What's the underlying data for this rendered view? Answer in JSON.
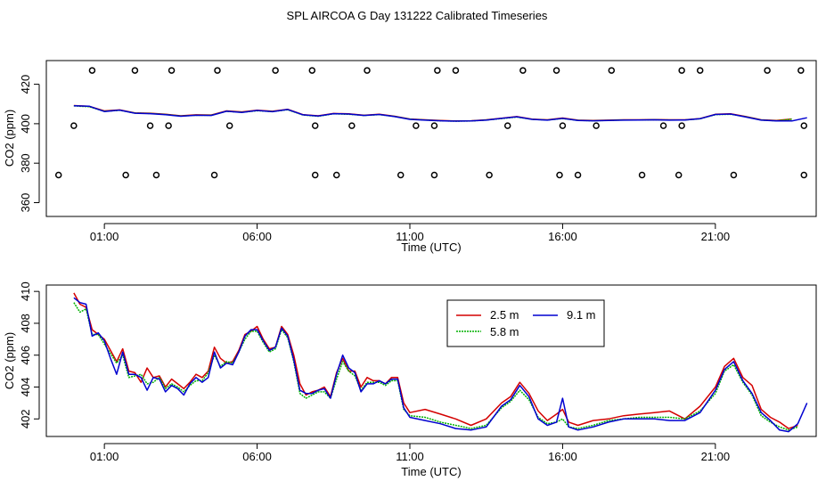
{
  "title": "SPL AIRCOA G  Day 131222  Calibrated Timeseries",
  "chart_data": [
    {
      "type": "scatter",
      "xlabel": "Time (UTC)",
      "ylabel": "CO2 (ppm)",
      "xlim": [
        -0.9,
        24.3
      ],
      "ylim": [
        353,
        432
      ],
      "x_ticks": [
        {
          "v": 1,
          "label": "01:00"
        },
        {
          "v": 6,
          "label": "06:00"
        },
        {
          "v": 11,
          "label": "11:00"
        },
        {
          "v": 16,
          "label": "16:00"
        },
        {
          "v": 21,
          "label": "21:00"
        }
      ],
      "y_ticks": [
        {
          "v": 360,
          "label": "360"
        },
        {
          "v": 380,
          "label": "380"
        },
        {
          "v": 400,
          "label": "400"
        },
        {
          "v": 420,
          "label": "420"
        }
      ],
      "grid": false,
      "series": [
        {
          "color": "#d40000",
          "x": [
            0,
            0.5,
            1.0,
            1.5,
            2.0,
            2.5,
            3.0,
            3.5,
            4.0,
            4.5,
            5.0,
            5.5,
            6.0,
            6.5,
            7.0,
            7.5,
            8.0,
            8.5,
            9.0,
            9.5,
            10.0,
            10.5,
            11.0,
            11.5,
            12.0,
            12.5,
            13.0,
            13.5,
            14.0,
            14.5,
            15.0,
            15.5,
            16.0,
            16.5,
            17.0,
            17.5,
            18.0,
            18.5,
            19.0,
            19.5,
            20.0,
            20.5,
            21.0,
            21.5,
            22.0,
            22.5,
            23.0,
            23.5
          ],
          "y": [
            409.2,
            408.8,
            406.5,
            407.0,
            405.5,
            405.3,
            404.8,
            404.0,
            404.5,
            404.4,
            406.5,
            406.0,
            406.8,
            406.3,
            407.3,
            404.6,
            404.0,
            405.2,
            405.0,
            404.3,
            404.8,
            403.8,
            402.4,
            402.0,
            401.6,
            401.4,
            401.5,
            402.0,
            402.8,
            403.6,
            402.3,
            402.0,
            402.9,
            401.8,
            401.6,
            401.8,
            402.0,
            402.0,
            402.1,
            402.0,
            402.0,
            402.6,
            404.8,
            405.0,
            403.6,
            402.0,
            401.6,
            402.4
          ]
        },
        {
          "color": "#00b000",
          "x": [
            0,
            0.5,
            1.0,
            1.5,
            2.0,
            2.5,
            3.0,
            3.5,
            4.0,
            4.5,
            5.0,
            5.5,
            6.0,
            6.5,
            7.0,
            7.5,
            8.0,
            8.5,
            9.0,
            9.5,
            10.0,
            10.5,
            11.0,
            11.5,
            12.0,
            12.5,
            13.0,
            13.5,
            14.0,
            14.5,
            15.0,
            15.5,
            16.0,
            16.5,
            17.0,
            17.5,
            18.0,
            18.5,
            19.0,
            19.5,
            20.0,
            20.5,
            21.0,
            21.5,
            22.0,
            22.5,
            23.0,
            23.5
          ],
          "y": [
            409.0,
            408.6,
            406.3,
            406.8,
            405.4,
            405.2,
            404.7,
            403.9,
            404.3,
            404.3,
            406.3,
            405.8,
            406.6,
            406.2,
            407.1,
            404.4,
            403.8,
            405.0,
            404.8,
            404.2,
            404.6,
            403.7,
            402.3,
            401.9,
            401.5,
            401.3,
            401.4,
            401.9,
            402.6,
            403.4,
            402.2,
            401.9,
            402.6,
            401.7,
            401.5,
            401.7,
            401.9,
            401.9,
            402.0,
            401.9,
            401.9,
            402.5,
            404.6,
            404.8,
            403.5,
            401.9,
            401.5,
            402.3
          ]
        },
        {
          "color": "#0000d0",
          "x": [
            0,
            0.5,
            1.0,
            1.5,
            2.0,
            2.5,
            3.0,
            3.5,
            4.0,
            4.5,
            5.0,
            5.5,
            6.0,
            6.5,
            7.0,
            7.5,
            8.0,
            8.5,
            9.0,
            9.5,
            10.0,
            10.5,
            11.0,
            11.5,
            12.0,
            12.5,
            13.0,
            13.5,
            14.0,
            14.5,
            15.0,
            15.5,
            16.0,
            16.5,
            17.0,
            17.5,
            18.0,
            18.5,
            19.0,
            19.5,
            20.0,
            20.5,
            21.0,
            21.5,
            22.0,
            22.5,
            23.0,
            23.5,
            24.0
          ],
          "y": [
            409.1,
            408.9,
            406.2,
            406.9,
            405.3,
            405.1,
            404.6,
            403.8,
            404.3,
            404.2,
            406.3,
            405.7,
            406.7,
            406.1,
            407.2,
            404.5,
            403.9,
            405.1,
            404.9,
            404.2,
            404.7,
            403.6,
            402.2,
            401.8,
            401.5,
            401.3,
            401.4,
            401.8,
            402.7,
            403.5,
            402.2,
            401.8,
            402.7,
            401.6,
            401.5,
            401.6,
            401.8,
            401.9,
            402.0,
            401.8,
            401.9,
            402.5,
            404.7,
            404.9,
            403.4,
            401.8,
            401.4,
            401.4,
            403.0
          ]
        },
        {
          "marker": "circle",
          "x": [
            0.6,
            2.0,
            3.2,
            4.7,
            6.6,
            7.8,
            9.6,
            11.9,
            12.5,
            14.7,
            15.8,
            17.6,
            19.9,
            20.5,
            22.7,
            23.8
          ],
          "y": [
            427,
            427,
            427,
            427,
            427,
            427,
            427,
            427,
            427,
            427,
            427,
            427,
            427,
            427,
            427,
            427
          ]
        },
        {
          "marker": "circle",
          "x": [
            0.0,
            2.5,
            3.1,
            5.1,
            7.9,
            9.1,
            11.2,
            11.8,
            14.2,
            16.0,
            17.1,
            19.3,
            19.9,
            23.9
          ],
          "y": [
            399,
            399,
            399,
            399,
            399,
            399,
            399,
            399,
            399,
            399,
            399,
            399,
            399,
            399
          ]
        },
        {
          "marker": "circle",
          "x": [
            -0.5,
            1.7,
            2.7,
            4.6,
            7.9,
            8.6,
            10.7,
            11.8,
            13.6,
            15.9,
            16.5,
            18.6,
            19.8,
            21.6,
            23.9
          ],
          "y": [
            374,
            374,
            374,
            374,
            374,
            374,
            374,
            374,
            374,
            374,
            374,
            374,
            374,
            374,
            374
          ]
        }
      ]
    },
    {
      "type": "line",
      "xlabel": "Time (UTC)",
      "ylabel": "CO2 (ppm)",
      "xlim": [
        -0.9,
        24.3
      ],
      "ylim": [
        400.9,
        410.4
      ],
      "x_ticks": [
        {
          "v": 1,
          "label": "01:00"
        },
        {
          "v": 6,
          "label": "06:00"
        },
        {
          "v": 11,
          "label": "11:00"
        },
        {
          "v": 16,
          "label": "16:00"
        },
        {
          "v": 21,
          "label": "21:00"
        }
      ],
      "y_ticks": [
        {
          "v": 402,
          "label": "402"
        },
        {
          "v": 404,
          "label": "404"
        },
        {
          "v": 406,
          "label": "406"
        },
        {
          "v": 408,
          "label": "408"
        },
        {
          "v": 410,
          "label": "410"
        }
      ],
      "grid": false,
      "legend_position": "top-center",
      "series": [
        {
          "name": "2.5 m",
          "color": "#d40000",
          "x": [
            0,
            0.2,
            0.4,
            0.6,
            0.8,
            1.0,
            1.2,
            1.4,
            1.6,
            1.8,
            2.0,
            2.2,
            2.4,
            2.6,
            2.8,
            3.0,
            3.2,
            3.4,
            3.6,
            3.8,
            4.0,
            4.2,
            4.4,
            4.6,
            4.8,
            5.0,
            5.2,
            5.4,
            5.6,
            5.8,
            6.0,
            6.2,
            6.4,
            6.6,
            6.8,
            7.0,
            7.2,
            7.4,
            7.6,
            7.8,
            8.0,
            8.2,
            8.4,
            8.6,
            8.8,
            9.0,
            9.2,
            9.4,
            9.6,
            9.8,
            10.0,
            10.2,
            10.4,
            10.6,
            10.8,
            11.0,
            11.5,
            12.0,
            12.5,
            13.0,
            13.5,
            14.0,
            14.3,
            14.6,
            14.9,
            15.2,
            15.5,
            15.8,
            16.0,
            16.2,
            16.5,
            17.0,
            17.5,
            18.0,
            18.5,
            19.0,
            19.5,
            20.0,
            20.5,
            21.0,
            21.3,
            21.6,
            21.9,
            22.2,
            22.5,
            22.8,
            23.1,
            23.4,
            23.7
          ],
          "y": [
            409.9,
            409.2,
            409.0,
            407.6,
            407.3,
            407.0,
            406.3,
            405.6,
            406.4,
            405.0,
            404.9,
            404.3,
            405.2,
            404.6,
            404.7,
            404.0,
            404.5,
            404.2,
            403.9,
            404.3,
            404.8,
            404.6,
            405.0,
            406.5,
            405.8,
            405.5,
            405.6,
            406.3,
            407.3,
            407.5,
            407.8,
            407.0,
            406.4,
            406.5,
            407.8,
            407.3,
            406.0,
            404.2,
            403.5,
            403.7,
            403.8,
            404.0,
            403.4,
            404.9,
            405.8,
            405.0,
            405.0,
            404.0,
            404.6,
            404.4,
            404.4,
            404.2,
            404.6,
            404.6,
            403.0,
            402.4,
            402.6,
            402.3,
            402.0,
            401.6,
            402.0,
            403.0,
            403.4,
            404.3,
            403.6,
            402.5,
            401.9,
            402.3,
            402.6,
            401.8,
            401.6,
            401.9,
            402.0,
            402.2,
            402.3,
            402.4,
            402.5,
            402.0,
            402.8,
            404.0,
            405.3,
            405.8,
            404.6,
            404.1,
            402.6,
            402.1,
            401.8,
            401.4,
            401.6
          ]
        },
        {
          "name": "5.8 m",
          "color": "#00b000",
          "x": [
            0,
            0.2,
            0.4,
            0.6,
            0.8,
            1.0,
            1.2,
            1.4,
            1.6,
            1.8,
            2.0,
            2.2,
            2.4,
            2.6,
            2.8,
            3.0,
            3.2,
            3.4,
            3.6,
            3.8,
            4.0,
            4.2,
            4.4,
            4.6,
            4.8,
            5.0,
            5.2,
            5.4,
            5.6,
            5.8,
            6.0,
            6.2,
            6.4,
            6.6,
            6.8,
            7.0,
            7.2,
            7.4,
            7.6,
            7.8,
            8.0,
            8.2,
            8.4,
            8.6,
            8.8,
            9.0,
            9.2,
            9.4,
            9.6,
            9.8,
            10.0,
            10.2,
            10.4,
            10.6,
            10.8,
            11.0,
            11.5,
            12.0,
            12.5,
            13.0,
            13.5,
            14.0,
            14.3,
            14.6,
            14.9,
            15.2,
            15.5,
            15.8,
            16.0,
            16.2,
            16.5,
            17.0,
            17.5,
            18.0,
            18.5,
            19.0,
            19.5,
            20.0,
            20.5,
            21.0,
            21.3,
            21.6,
            21.9,
            22.2,
            22.5,
            22.8,
            23.1,
            23.4,
            23.7
          ],
          "y": [
            409.3,
            408.7,
            408.9,
            407.3,
            407.3,
            406.7,
            406.1,
            405.5,
            406.0,
            404.6,
            404.7,
            404.8,
            404.2,
            404.3,
            404.6,
            403.9,
            404.2,
            404.0,
            403.7,
            404.1,
            404.4,
            404.4,
            404.9,
            406.0,
            405.3,
            405.6,
            405.5,
            406.2,
            407.0,
            407.5,
            407.5,
            406.8,
            406.2,
            406.4,
            407.6,
            407.1,
            405.6,
            403.6,
            403.3,
            403.5,
            403.7,
            403.7,
            403.3,
            404.5,
            405.6,
            405.0,
            404.7,
            403.8,
            404.3,
            404.3,
            404.3,
            404.1,
            404.4,
            404.4,
            402.6,
            402.2,
            402.1,
            401.8,
            401.6,
            401.4,
            401.6,
            402.7,
            403.1,
            403.8,
            403.2,
            402.1,
            401.7,
            401.8,
            402.0,
            401.5,
            401.4,
            401.6,
            401.9,
            402.0,
            402.1,
            402.1,
            402.1,
            402.0,
            402.5,
            403.6,
            405.0,
            405.4,
            404.3,
            403.5,
            402.2,
            401.8,
            401.5,
            401.3,
            401.5
          ]
        },
        {
          "name": "9.1 m",
          "color": "#0000d0",
          "x": [
            0,
            0.2,
            0.4,
            0.6,
            0.8,
            1.0,
            1.2,
            1.4,
            1.6,
            1.8,
            2.0,
            2.2,
            2.4,
            2.6,
            2.8,
            3.0,
            3.2,
            3.4,
            3.6,
            3.8,
            4.0,
            4.2,
            4.4,
            4.6,
            4.8,
            5.0,
            5.2,
            5.4,
            5.6,
            5.8,
            6.0,
            6.2,
            6.4,
            6.6,
            6.8,
            7.0,
            7.2,
            7.4,
            7.6,
            7.8,
            8.0,
            8.2,
            8.4,
            8.6,
            8.8,
            9.0,
            9.2,
            9.4,
            9.6,
            9.8,
            10.0,
            10.2,
            10.4,
            10.6,
            10.8,
            11.0,
            11.5,
            12.0,
            12.5,
            13.0,
            13.5,
            14.0,
            14.3,
            14.6,
            14.9,
            15.2,
            15.5,
            15.8,
            16.0,
            16.2,
            16.5,
            17.0,
            17.5,
            18.0,
            18.5,
            19.0,
            19.5,
            20.0,
            20.5,
            21.0,
            21.3,
            21.6,
            21.9,
            22.2,
            22.5,
            22.8,
            23.1,
            23.4,
            23.7,
            24.0
          ],
          "y": [
            409.6,
            409.3,
            409.2,
            407.2,
            407.4,
            406.9,
            405.8,
            404.8,
            406.2,
            404.8,
            404.8,
            404.6,
            403.8,
            404.6,
            404.5,
            403.7,
            404.1,
            403.9,
            403.5,
            404.2,
            404.6,
            404.3,
            404.6,
            406.2,
            405.2,
            405.5,
            405.4,
            406.2,
            407.2,
            407.6,
            407.6,
            406.9,
            406.3,
            406.5,
            407.7,
            407.2,
            405.7,
            403.8,
            403.6,
            403.6,
            403.8,
            403.9,
            403.3,
            404.8,
            406.0,
            405.2,
            404.9,
            403.7,
            404.2,
            404.2,
            404.4,
            404.2,
            404.5,
            404.5,
            402.7,
            402.1,
            401.9,
            401.7,
            401.4,
            401.3,
            401.5,
            402.8,
            403.2,
            404.1,
            403.4,
            402.0,
            401.6,
            401.8,
            403.3,
            401.5,
            401.3,
            401.5,
            401.8,
            402.0,
            402.0,
            402.0,
            401.9,
            401.9,
            402.4,
            403.8,
            405.1,
            405.6,
            404.4,
            403.6,
            402.4,
            401.9,
            401.3,
            401.2,
            401.7,
            403.0
          ]
        }
      ]
    }
  ]
}
